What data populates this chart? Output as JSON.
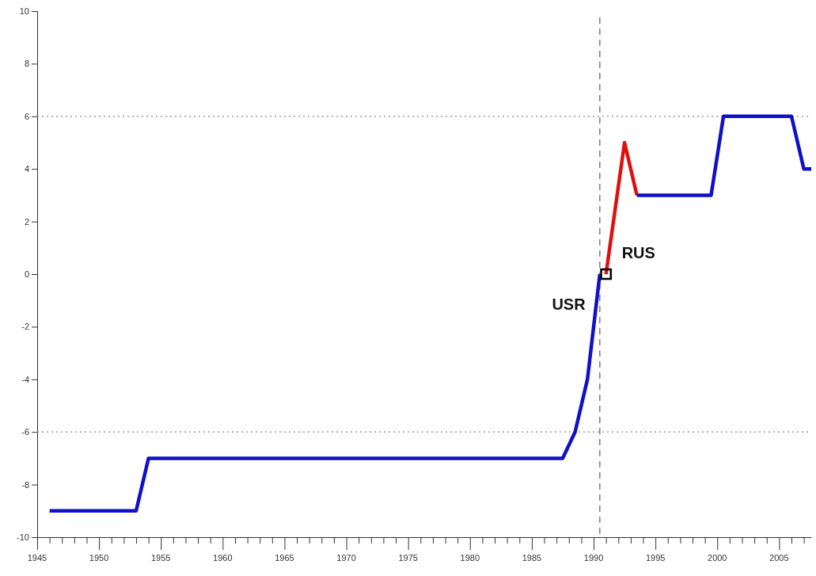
{
  "chart_data": {
    "type": "line",
    "xlim": [
      1945,
      2007.6
    ],
    "ylim": [
      -10,
      10
    ],
    "xticks": [
      1945,
      {
        "value": 1946,
        "label": null
      },
      {
        "value": 1947,
        "label": null
      },
      {
        "value": 1948,
        "label": null
      },
      {
        "value": 1949,
        "label": null
      },
      1950,
      {
        "value": 1951,
        "label": null
      },
      {
        "value": 1952,
        "label": null
      },
      {
        "value": 1953,
        "label": null
      },
      {
        "value": 1954,
        "label": null
      },
      1955,
      {
        "value": 1956,
        "label": null
      },
      {
        "value": 1957,
        "label": null
      },
      {
        "value": 1958,
        "label": null
      },
      {
        "value": 1959,
        "label": null
      },
      1960,
      {
        "value": 1961,
        "label": null
      },
      {
        "value": 1962,
        "label": null
      },
      {
        "value": 1963,
        "label": null
      },
      {
        "value": 1964,
        "label": null
      },
      1965,
      {
        "value": 1966,
        "label": null
      },
      {
        "value": 1967,
        "label": null
      },
      {
        "value": 1968,
        "label": null
      },
      {
        "value": 1969,
        "label": null
      },
      1970,
      {
        "value": 1971,
        "label": null
      },
      {
        "value": 1972,
        "label": null
      },
      {
        "value": 1973,
        "label": null
      },
      {
        "value": 1974,
        "label": null
      },
      1975,
      {
        "value": 1976,
        "label": null
      },
      {
        "value": 1977,
        "label": null
      },
      {
        "value": 1978,
        "label": null
      },
      {
        "value": 1979,
        "label": null
      },
      1980,
      {
        "value": 1981,
        "label": null
      },
      {
        "value": 1982,
        "label": null
      },
      {
        "value": 1983,
        "label": null
      },
      {
        "value": 1984,
        "label": null
      },
      1985,
      {
        "value": 1986,
        "label": null
      },
      {
        "value": 1987,
        "label": null
      },
      {
        "value": 1988,
        "label": null
      },
      {
        "value": 1989,
        "label": null
      },
      1990,
      {
        "value": 1991,
        "label": null
      },
      {
        "value": 1992,
        "label": null
      },
      {
        "value": 1993,
        "label": null
      },
      {
        "value": 1994,
        "label": null
      },
      1995,
      {
        "value": 1996,
        "label": null
      },
      {
        "value": 1997,
        "label": null
      },
      {
        "value": 1998,
        "label": null
      },
      {
        "value": 1999,
        "label": null
      },
      2000,
      {
        "value": 2001,
        "label": null
      },
      {
        "value": 2002,
        "label": null
      },
      {
        "value": 2003,
        "label": null
      },
      {
        "value": 2004,
        "label": null
      },
      2005,
      {
        "value": 2006,
        "label": null
      },
      {
        "value": 2007,
        "label": null
      }
    ],
    "yticks": [
      -10,
      -8,
      -6,
      -4,
      -2,
      0,
      2,
      4,
      6,
      8,
      10
    ],
    "grid": false,
    "line_style": "solid",
    "series": [
      {
        "color": "#1010c8",
        "x": [
          1946,
          1953,
          1954,
          1987.5,
          1988.5,
          1989.5,
          1990.5
        ],
        "values": [
          -9,
          -9,
          -7,
          -7,
          -6,
          -4,
          0
        ]
      },
      {
        "color": "#e01010",
        "x": [
          1991,
          1992.5,
          1993.5
        ],
        "values": [
          0,
          5,
          3
        ]
      },
      {
        "color": "#1010c8",
        "x": [
          1993.5,
          1999.5,
          2000.5,
          2006,
          2007,
          2007.6
        ],
        "values": [
          3,
          3,
          6,
          6,
          4,
          4
        ]
      },
      {
        "type": "scatter",
        "color": "#000000",
        "marker": "square",
        "x": [
          1991
        ],
        "values": [
          0
        ]
      }
    ],
    "ref_lines": [
      {
        "axis": "y",
        "value": 6,
        "line_style": "dotted",
        "color": "#888888"
      },
      {
        "axis": "y",
        "value": -6,
        "line_style": "dotted",
        "color": "#888888"
      },
      {
        "axis": "x",
        "value": 1990.5,
        "line_style": "dashed",
        "color": "#666666"
      }
    ],
    "annotations": [
      "USR",
      "RUS"
    ]
  }
}
